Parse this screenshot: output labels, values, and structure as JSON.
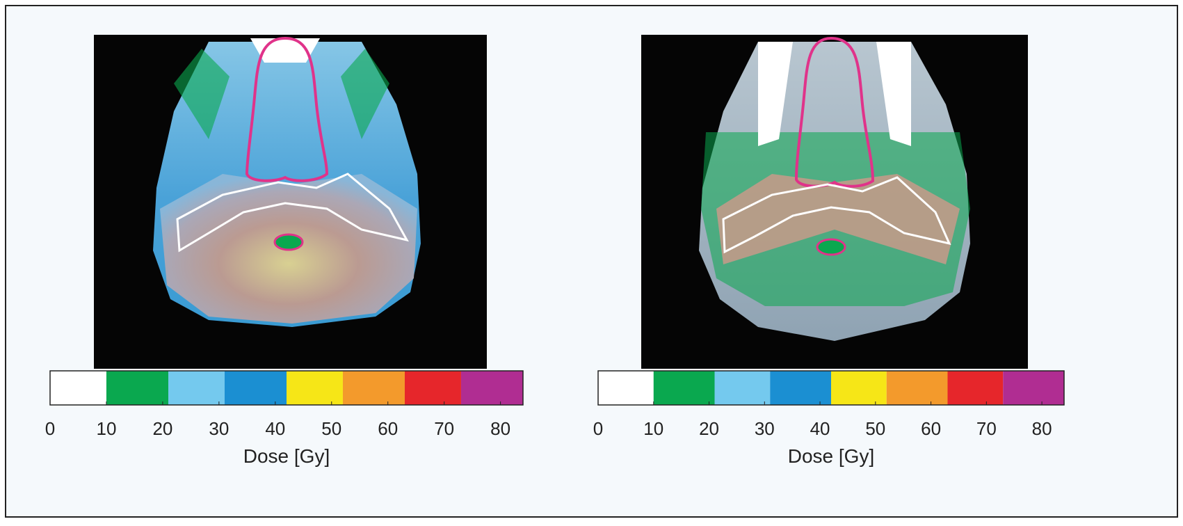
{
  "panels": [
    {
      "colorbar": {
        "bins": [
          0,
          10,
          21,
          31,
          42,
          52,
          63,
          73,
          84
        ],
        "colors": [
          "#ffffff",
          "#0aa84f",
          "#74c9ee",
          "#1b8fd2",
          "#f6e617",
          "#f39a2c",
          "#e6262b",
          "#b02d92"
        ],
        "ticks": [
          0,
          10,
          20,
          30,
          40,
          50,
          60,
          70,
          80
        ],
        "label": "Dose [Gy]"
      }
    },
    {
      "colorbar": {
        "bins": [
          0,
          10,
          21,
          31,
          42,
          52,
          63,
          73,
          84
        ],
        "colors": [
          "#ffffff",
          "#0aa84f",
          "#74c9ee",
          "#1b8fd2",
          "#f6e617",
          "#f39a2c",
          "#e6262b",
          "#b02d92"
        ],
        "ticks": [
          0,
          10,
          20,
          30,
          40,
          50,
          60,
          70,
          80
        ],
        "label": "Dose [Gy]"
      }
    }
  ]
}
